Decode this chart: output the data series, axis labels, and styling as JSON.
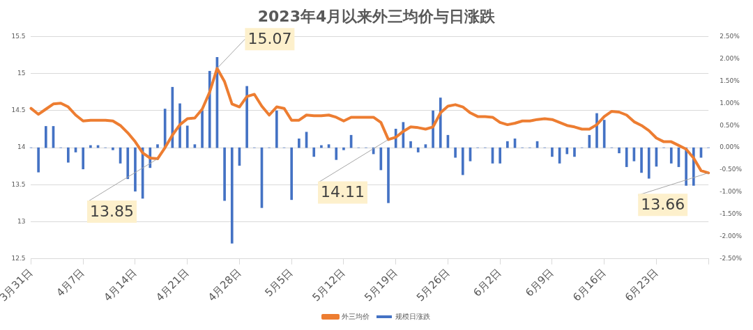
{
  "chart_data": {
    "type": "bar",
    "title": "2023年4月以来外三均价与日涨跌",
    "x": [
      "--03-31",
      "--04-01",
      "--04-02",
      "--04-03",
      "--04-04",
      "--04-05",
      "--04-06",
      "--04-07",
      "--04-08",
      "--04-09",
      "--04-10",
      "--04-11",
      "--04-12",
      "--04-13",
      "--04-14",
      "--04-15",
      "--04-16",
      "--04-17",
      "--04-18",
      "--04-19",
      "--04-20",
      "--04-21",
      "--04-22",
      "--04-23",
      "--04-24",
      "--04-25",
      "--04-26",
      "--04-27",
      "--04-28",
      "--04-29",
      "--04-30",
      "--05-01",
      "--05-02",
      "--05-03",
      "--05-04",
      "--05-05",
      "--05-06",
      "--05-07",
      "--05-08",
      "--05-09",
      "--05-10",
      "--05-11",
      "--05-12",
      "--05-13",
      "--05-14",
      "--05-15",
      "--05-16",
      "--05-17",
      "--05-18",
      "--05-19",
      "--05-20",
      "--05-21",
      "--05-22",
      "--05-23",
      "--05-24",
      "--05-25",
      "--05-26",
      "--05-27",
      "--05-28",
      "--05-29",
      "--05-30",
      "--05-31",
      "--06-01",
      "--06-02",
      "--06-03",
      "--06-04",
      "--06-05",
      "--06-06",
      "--06-07",
      "--06-08",
      "--06-09",
      "--06-10",
      "--06-11",
      "--06-12",
      "--06-13",
      "--06-14",
      "--06-15",
      "--06-16",
      "--06-17",
      "--06-18",
      "--06-19",
      "--06-20",
      "--06-21",
      "--06-22",
      "--06-23",
      "--06-24",
      "--06-25",
      "--06-26",
      "--06-27",
      "--06-28",
      "--06-29",
      "--06-30"
    ],
    "series": [
      {
        "name": "规模日涨跌",
        "axis": "y2",
        "color": "#4472c4",
        "values": [
          0,
          -0.55,
          0.48,
          0.48,
          0,
          -0.33,
          -0.1,
          -0.48,
          0.05,
          0.05,
          0,
          -0.05,
          -0.35,
          -0.7,
          -0.98,
          -1.14,
          -0.45,
          0.07,
          0.87,
          1.36,
          0.99,
          0.49,
          0.07,
          0.83,
          1.72,
          2.03,
          -1.19,
          -2.15,
          -0.4,
          1.38,
          0,
          -1.35,
          0,
          0.83,
          0,
          -1.17,
          0.2,
          0.35,
          -0.2,
          0.05,
          0.07,
          -0.27,
          -0.05,
          0.28,
          0,
          0,
          -0.14,
          -0.5,
          -1.24,
          0.42,
          0.57,
          0.14,
          -0.1,
          0.07,
          0.83,
          1.12,
          0.28,
          -0.22,
          -0.61,
          -0.3,
          0,
          0,
          -0.35,
          -0.35,
          0.14,
          0.2,
          0,
          0,
          0.14,
          0,
          -0.2,
          -0.35,
          -0.14,
          -0.2,
          0,
          0.28,
          0.77,
          0.62,
          0,
          -0.12,
          -0.43,
          -0.3,
          -0.56,
          -0.69,
          -0.42,
          0,
          -0.35,
          -0.43,
          -0.85,
          -0.85,
          -0.22,
          0
        ]
      },
      {
        "name": "外三均价",
        "type": "line",
        "color": "#ed7d31",
        "values": [
          14.53,
          14.45,
          14.52,
          14.59,
          14.6,
          14.55,
          14.44,
          14.36,
          14.37,
          14.37,
          14.37,
          14.36,
          14.3,
          14.2,
          14.08,
          13.93,
          13.86,
          13.85,
          14.0,
          14.17,
          14.31,
          14.39,
          14.4,
          14.52,
          14.75,
          15.07,
          14.89,
          14.59,
          14.55,
          14.69,
          14.72,
          14.56,
          14.44,
          14.55,
          14.53,
          14.37,
          14.37,
          14.44,
          14.43,
          14.43,
          14.44,
          14.41,
          14.36,
          14.41,
          14.41,
          14.41,
          14.41,
          14.34,
          14.11,
          14.14,
          14.22,
          14.28,
          14.27,
          14.25,
          14.28,
          14.47,
          14.56,
          14.58,
          14.55,
          14.47,
          14.42,
          14.42,
          14.41,
          14.34,
          14.31,
          14.33,
          14.36,
          14.36,
          14.38,
          14.39,
          14.38,
          14.34,
          14.3,
          14.28,
          14.25,
          14.25,
          14.31,
          14.42,
          14.49,
          14.48,
          14.44,
          14.35,
          14.3,
          14.23,
          14.13,
          14.08,
          14.08,
          14.03,
          13.98,
          13.86,
          13.69,
          13.66
        ],
        "value_labels": [
          null,
          null,
          null,
          null,
          null,
          null,
          null,
          null,
          null,
          null,
          null,
          null,
          null,
          null,
          null,
          null,
          null,
          "13.85",
          null,
          null,
          null,
          null,
          null,
          null,
          null,
          "15.07",
          null,
          null,
          null,
          null,
          null,
          null,
          null,
          null,
          null,
          null,
          null,
          null,
          null,
          null,
          null,
          null,
          null,
          null,
          null,
          null,
          null,
          null,
          "14.11",
          null,
          null,
          null,
          null,
          null,
          null,
          null,
          null,
          null,
          null,
          null,
          null,
          null,
          null,
          null,
          null,
          null,
          null,
          null,
          null,
          null,
          null,
          null,
          null,
          null,
          null,
          null,
          null,
          null,
          null,
          null,
          null,
          null,
          null,
          null,
          null,
          null,
          null,
          null,
          null,
          null,
          null,
          "13.66"
        ]
      }
    ],
    "xlim": [
      "--03-31",
      "--06-30"
    ],
    "xticks": [
      {
        "value": "--03-31",
        "label": "3月31日"
      },
      {
        "value": "--04-07",
        "label": "4月7日"
      },
      {
        "value": "--04-14",
        "label": "4月14日"
      },
      {
        "value": "--04-21",
        "label": "4月21日"
      },
      {
        "value": "--04-28",
        "label": "4月28日"
      },
      {
        "value": "--05-05",
        "label": "5月5日"
      },
      {
        "value": "--05-12",
        "label": "5月12日"
      },
      {
        "value": "--05-19",
        "label": "5月19日"
      },
      {
        "value": "--05-26",
        "label": "5月26日"
      },
      {
        "value": "--06-02",
        "label": "6月2日"
      },
      {
        "value": "--06-09",
        "label": "6月9日"
      },
      {
        "value": "--06-16",
        "label": "6月16日"
      },
      {
        "value": "--06-23",
        "label": "6月23日"
      },
      {
        "value": "--06-30",
        "label": null
      }
    ],
    "ylim": [
      12.5,
      15.5
    ],
    "yticks": [
      12.5,
      13,
      13.5,
      14,
      14.5,
      15,
      15.5
    ],
    "y2lim": [
      -2.5,
      2.5
    ],
    "y2ticks": [
      {
        "value": -2.5,
        "label": "-2.50%"
      },
      {
        "value": -2,
        "label": "-2.00%"
      },
      {
        "value": -1.5,
        "label": "-1.50%"
      },
      {
        "value": -1,
        "label": "-1.00%"
      },
      {
        "value": -0.5,
        "label": "-0.50%"
      },
      {
        "value": 0,
        "label": "0.00%"
      },
      {
        "value": 0.5,
        "label": "0.50%"
      },
      {
        "value": 1,
        "label": "1.00%"
      },
      {
        "value": 1.5,
        "label": "1.50%"
      },
      {
        "value": 2,
        "label": "2.00%"
      },
      {
        "value": 2.5,
        "label": "2.50%"
      }
    ],
    "grid": "y",
    "legend": "bottom"
  }
}
